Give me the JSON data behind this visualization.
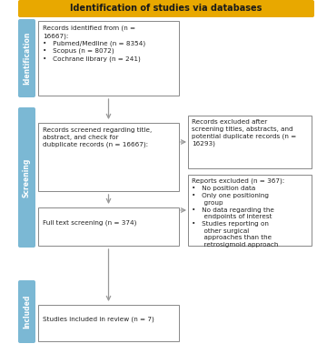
{
  "title": "Identification of studies via databases",
  "title_bg": "#E8A800",
  "title_text_color": "#1a1a1a",
  "sidebar_color": "#7BB8D4",
  "box_border_color": "#888888",
  "arrow_color": "#999999",
  "box1_text": "Records identified from (n =\n16667):\n•   Pubmed/Medline (n = 8354)\n•   Scopus (n = 8072)\n•   Cochrane library (n = 241)",
  "box2_text": "Records screened regarding title,\nabstract, and check for\ndubplicate records (n = 16667):",
  "box3_text": "Full text screening (n = 374)",
  "box4_text": "Studies included in review (n = 7)",
  "box_right1_text": "Records excluded after\nscreening titles, abstracts, and\npotential duplicate records (n =\n16293)",
  "box_right2_text": "Reports excluded (n = 367):\n•   No position data\n•   Only one positioning\n      group\n•   No data regarding the\n      endpoints of interest\n•   Studies reporting on\n      other surgical\n      approaches than the\n      retrosigmoid approach",
  "font_size": 5.2,
  "title_font_size": 7.0,
  "sidebar_font_size": 5.5
}
